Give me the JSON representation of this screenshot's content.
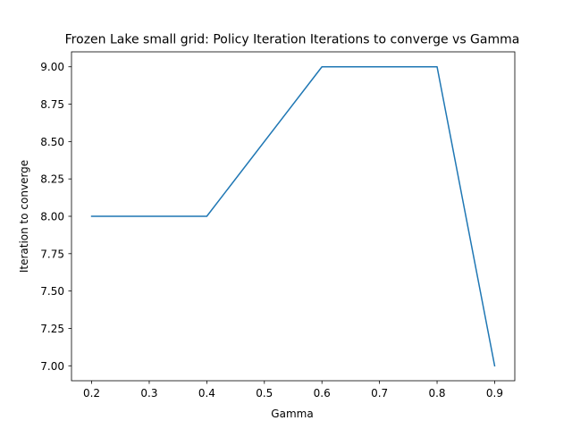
{
  "chart_data": {
    "type": "line",
    "title": "Frozen Lake small grid: Policy Iteration Iterations to converge vs Gamma",
    "xlabel": "Gamma",
    "ylabel": "Iteration to converge",
    "xlim": [
      0.165,
      0.935
    ],
    "ylim": [
      6.9,
      9.1
    ],
    "xticks": [
      0.2,
      0.3,
      0.4,
      0.5,
      0.6,
      0.7,
      0.8,
      0.9
    ],
    "xtick_labels": [
      "0.2",
      "0.3",
      "0.4",
      "0.5",
      "0.6",
      "0.7",
      "0.8",
      "0.9"
    ],
    "yticks": [
      7.0,
      7.25,
      7.5,
      7.75,
      8.0,
      8.25,
      8.5,
      8.75,
      9.0
    ],
    "ytick_labels": [
      "7.00",
      "7.25",
      "7.50",
      "7.75",
      "8.00",
      "8.25",
      "8.50",
      "8.75",
      "9.00"
    ],
    "grid": false,
    "series": [
      {
        "name": "Policy Iteration",
        "color": "#1f77b4",
        "x": [
          0.2,
          0.4,
          0.6,
          0.8,
          0.9
        ],
        "y": [
          8,
          8,
          9,
          9,
          7
        ]
      }
    ]
  }
}
